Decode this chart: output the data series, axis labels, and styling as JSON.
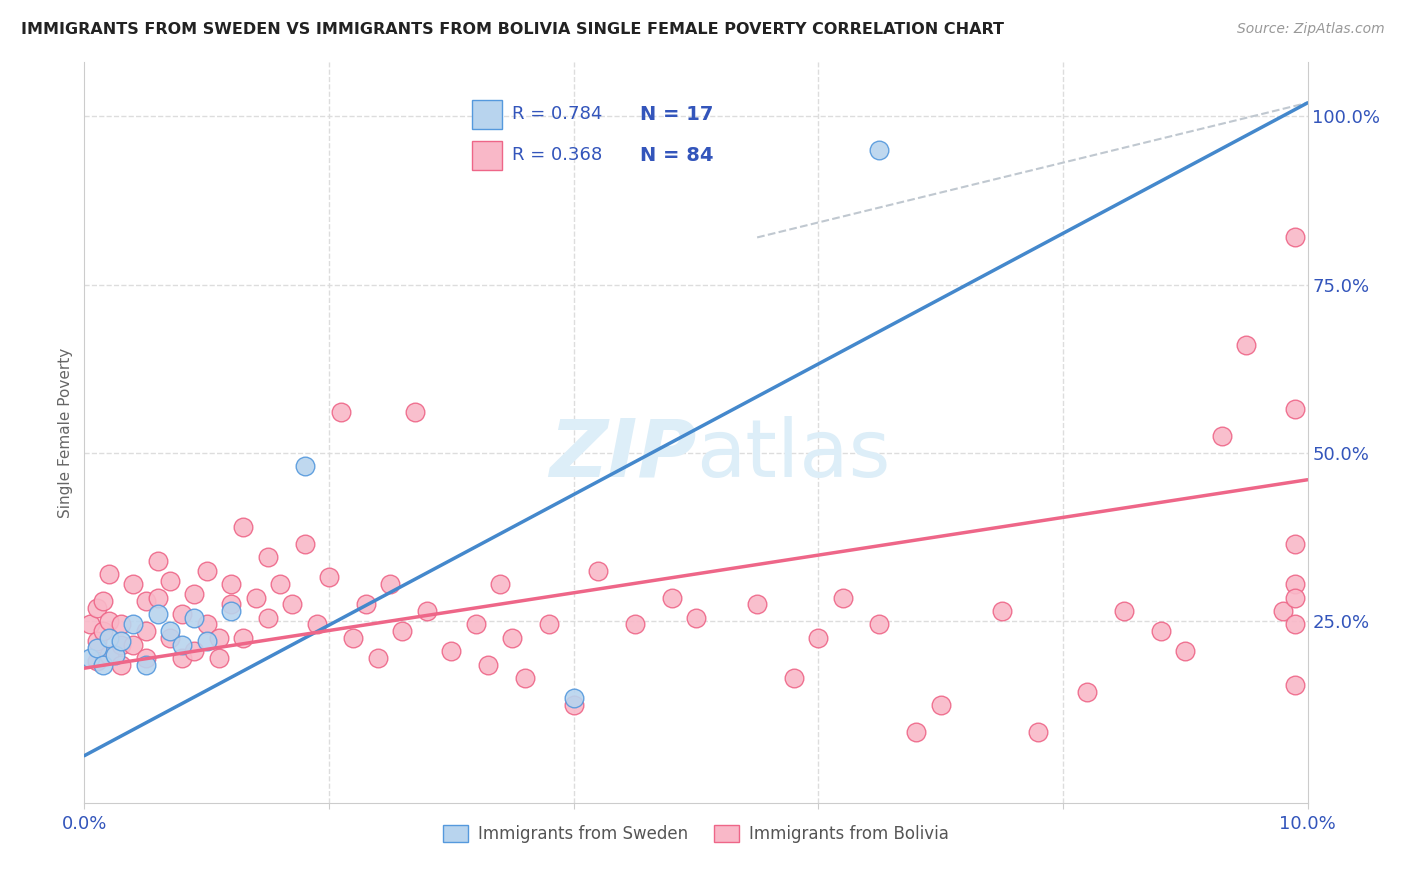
{
  "title": "IMMIGRANTS FROM SWEDEN VS IMMIGRANTS FROM BOLIVIA SINGLE FEMALE POVERTY CORRELATION CHART",
  "source": "Source: ZipAtlas.com",
  "ylabel": "Single Female Poverty",
  "ylabel_right_ticks": [
    "100.0%",
    "75.0%",
    "50.0%",
    "25.0%"
  ],
  "ylabel_right_vals": [
    1.0,
    0.75,
    0.5,
    0.25
  ],
  "xmin": 0.0,
  "xmax": 0.1,
  "ymin": -0.02,
  "ymax": 1.08,
  "sweden_fill_color": "#b8d4ee",
  "sweden_edge_color": "#5599dd",
  "bolivia_fill_color": "#f9b8c8",
  "bolivia_edge_color": "#ee6688",
  "sweden_line_color": "#4488cc",
  "bolivia_line_color": "#ee6688",
  "dashed_line_color": "#c0c8d0",
  "R_sweden": 0.784,
  "N_sweden": 17,
  "R_bolivia": 0.368,
  "N_bolivia": 84,
  "legend_text_color": "#3355bb",
  "watermark_color": "#ddeef8",
  "sweden_line_x0": 0.0,
  "sweden_line_y0": 0.05,
  "sweden_line_x1": 0.1,
  "sweden_line_y1": 1.02,
  "bolivia_line_x0": 0.0,
  "bolivia_line_y0": 0.18,
  "bolivia_line_x1": 0.1,
  "bolivia_line_y1": 0.46,
  "dash_line_x0": 0.055,
  "dash_line_y0": 0.82,
  "dash_line_x1": 0.1,
  "dash_line_y1": 1.02,
  "sweden_scatter_x": [
    0.0005,
    0.001,
    0.0015,
    0.002,
    0.0025,
    0.003,
    0.004,
    0.005,
    0.006,
    0.007,
    0.008,
    0.009,
    0.01,
    0.012,
    0.018,
    0.04,
    0.065
  ],
  "sweden_scatter_y": [
    0.195,
    0.21,
    0.185,
    0.225,
    0.2,
    0.22,
    0.245,
    0.185,
    0.26,
    0.235,
    0.215,
    0.255,
    0.22,
    0.265,
    0.48,
    0.135,
    0.95
  ],
  "bolivia_scatter_x": [
    0.0005,
    0.001,
    0.001,
    0.001,
    0.0015,
    0.0015,
    0.002,
    0.002,
    0.002,
    0.003,
    0.003,
    0.003,
    0.004,
    0.004,
    0.005,
    0.005,
    0.005,
    0.006,
    0.006,
    0.007,
    0.007,
    0.008,
    0.008,
    0.009,
    0.009,
    0.01,
    0.01,
    0.011,
    0.011,
    0.012,
    0.012,
    0.013,
    0.013,
    0.014,
    0.015,
    0.015,
    0.016,
    0.017,
    0.018,
    0.019,
    0.02,
    0.021,
    0.022,
    0.023,
    0.024,
    0.025,
    0.026,
    0.027,
    0.028,
    0.03,
    0.032,
    0.033,
    0.034,
    0.035,
    0.036,
    0.038,
    0.04,
    0.042,
    0.045,
    0.048,
    0.05,
    0.055,
    0.058,
    0.06,
    0.062,
    0.065,
    0.068,
    0.07,
    0.075,
    0.078,
    0.082,
    0.085,
    0.088,
    0.09,
    0.093,
    0.095,
    0.098,
    0.099,
    0.099,
    0.099,
    0.099,
    0.099,
    0.099,
    0.099
  ],
  "bolivia_scatter_y": [
    0.245,
    0.22,
    0.27,
    0.19,
    0.235,
    0.28,
    0.2,
    0.25,
    0.32,
    0.215,
    0.245,
    0.185,
    0.215,
    0.305,
    0.195,
    0.235,
    0.28,
    0.34,
    0.285,
    0.225,
    0.31,
    0.195,
    0.26,
    0.205,
    0.29,
    0.245,
    0.325,
    0.225,
    0.195,
    0.305,
    0.275,
    0.39,
    0.225,
    0.285,
    0.255,
    0.345,
    0.305,
    0.275,
    0.365,
    0.245,
    0.315,
    0.56,
    0.225,
    0.275,
    0.195,
    0.305,
    0.235,
    0.56,
    0.265,
    0.205,
    0.245,
    0.185,
    0.305,
    0.225,
    0.165,
    0.245,
    0.125,
    0.325,
    0.245,
    0.285,
    0.255,
    0.275,
    0.165,
    0.225,
    0.285,
    0.245,
    0.085,
    0.125,
    0.265,
    0.085,
    0.145,
    0.265,
    0.235,
    0.205,
    0.525,
    0.66,
    0.265,
    0.305,
    0.365,
    0.565,
    0.82,
    0.245,
    0.285,
    0.155
  ]
}
